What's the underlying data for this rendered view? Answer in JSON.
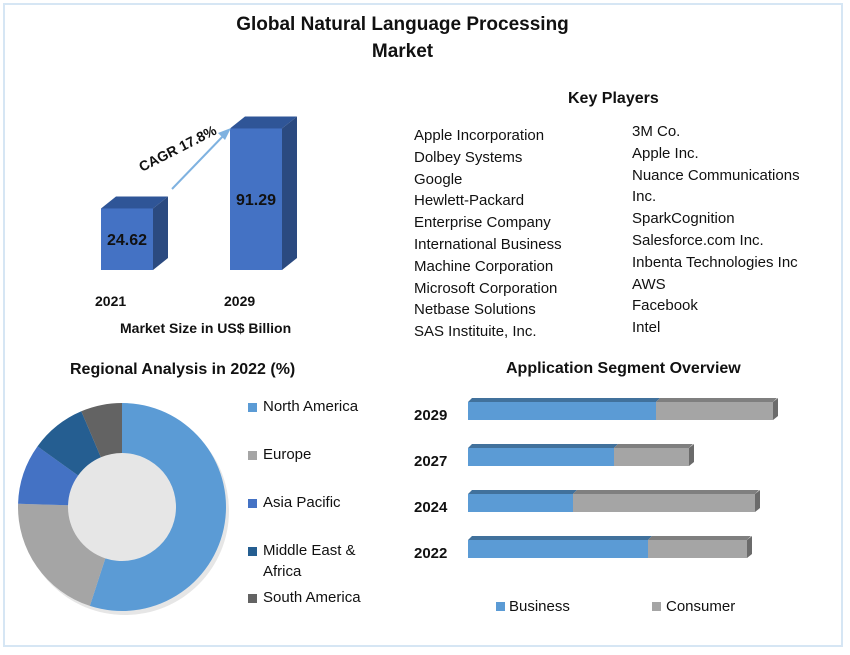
{
  "title": "Global Natural Language Processing Market",
  "title_lines": [
    "Global Natural Language Processing",
    "Market"
  ],
  "key_players": {
    "heading": "Key Players",
    "col1": [
      "Apple Incorporation",
      "Dolbey Systems",
      "Google",
      "Hewlett-Packard",
      "Enterprise Company",
      "International Business",
      "Machine Corporation",
      "Microsoft Corporation",
      "Netbase Solutions",
      "SAS Instituite, Inc."
    ],
    "col2": [
      "3M Co.",
      "Apple Inc.",
      "Nuance Communications",
      "Inc.",
      "SparkCognition",
      "Salesforce.com Inc.",
      "Inbenta Technologies Inc",
      "AWS",
      "Facebook",
      "Intel"
    ]
  },
  "chart_data": [
    {
      "type": "bar",
      "title": "",
      "xlabel": "Market Size in US$ Billion",
      "categories": [
        "2021",
        "2029"
      ],
      "values": [
        24.62,
        91.29
      ],
      "value_labels": [
        "24.62",
        "91.29"
      ],
      "annotation": "CAGR 17.8%",
      "color": "#4472c4"
    },
    {
      "type": "pie",
      "title": "Regional Analysis in 2022 (%)",
      "donut": true,
      "legend_position": "right",
      "categories": [
        "North America",
        "Europe",
        "Asia Pacific",
        "Middle East & Africa",
        "South America"
      ],
      "legend_labels": [
        "North America",
        "Europe",
        "Asia Pacific",
        "Middle East &",
        "Africa",
        "South America"
      ],
      "values": [
        55,
        20.5,
        9.4,
        8.7,
        6.4
      ],
      "colors": [
        "#5b9bd5",
        "#a5a5a5",
        "#4472c4",
        "#255e91",
        "#636363"
      ]
    },
    {
      "type": "bar",
      "orientation": "horizontal",
      "stacked": true,
      "title": "Application Segment Overview",
      "legend_position": "bottom",
      "categories": [
        "2029",
        "2027",
        "2024",
        "2022"
      ],
      "series": [
        {
          "name": "Business",
          "values": [
            188,
            146,
            105,
            180
          ],
          "color": "#5b9bd5"
        },
        {
          "name": "Consumer",
          "values": [
            117,
            75,
            182,
            99
          ],
          "color": "#a5a5a5"
        }
      ]
    }
  ]
}
